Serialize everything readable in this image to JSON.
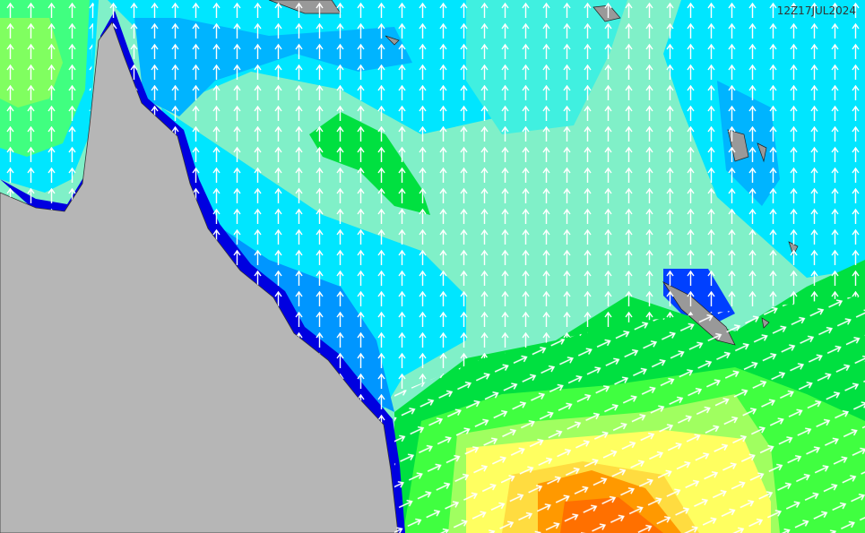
{
  "timestamp": "12Z17JUL2024"
}
